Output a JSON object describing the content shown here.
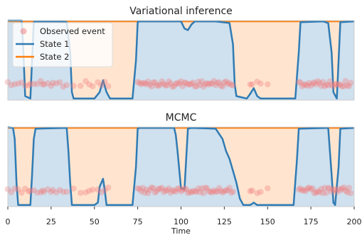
{
  "chart_data": {
    "type": "area",
    "xlabel": "Time",
    "xlim": [
      0,
      200
    ],
    "xticks": [
      "0",
      "25",
      "50",
      "75",
      "100",
      "125",
      "150",
      "175",
      "200"
    ],
    "legend": {
      "placement": "top-left",
      "entries": [
        "Observed event",
        "State 1",
        "State 2"
      ]
    },
    "colors": {
      "state1_line": "#2f7bb4",
      "state1_fill": "#cfe0ee",
      "state2_line": "#ff7f0e",
      "state2_fill": "#ffe5cf",
      "observed": "#f07a7a"
    },
    "panels": [
      {
        "title": "Variational inference",
        "state1_probability": [
          [
            0,
            1.0
          ],
          [
            8,
            1.0
          ],
          [
            9,
            0.6
          ],
          [
            10,
            0.05
          ],
          [
            13,
            0.02
          ],
          [
            14,
            0.5
          ],
          [
            15,
            0.98
          ],
          [
            16,
            0.99
          ],
          [
            30,
            0.99
          ],
          [
            34,
            0.98
          ],
          [
            36,
            0.6
          ],
          [
            37,
            0.1
          ],
          [
            38,
            0.02
          ],
          [
            50,
            0.02
          ],
          [
            53,
            0.1
          ],
          [
            55,
            0.25
          ],
          [
            57,
            0.1
          ],
          [
            59,
            0.02
          ],
          [
            72,
            0.02
          ],
          [
            74,
            0.5
          ],
          [
            75,
            0.98
          ],
          [
            76,
            0.99
          ],
          [
            100,
            0.99
          ],
          [
            102,
            0.9
          ],
          [
            104,
            0.88
          ],
          [
            106,
            0.95
          ],
          [
            108,
            0.99
          ],
          [
            120,
            0.99
          ],
          [
            128,
            0.97
          ],
          [
            130,
            0.7
          ],
          [
            131,
            0.2
          ],
          [
            132,
            0.05
          ],
          [
            138,
            0.02
          ],
          [
            140,
            0.08
          ],
          [
            142,
            0.15
          ],
          [
            144,
            0.05
          ],
          [
            146,
            0.02
          ],
          [
            166,
            0.02
          ],
          [
            168,
            0.6
          ],
          [
            169,
            0.98
          ],
          [
            182,
            0.99
          ],
          [
            185,
            0.97
          ],
          [
            187,
            0.6
          ],
          [
            188,
            0.1
          ],
          [
            190,
            0.02
          ],
          [
            191,
            0.5
          ],
          [
            192,
            0.98
          ],
          [
            200,
            0.99
          ]
        ]
      },
      {
        "title": "MCMC",
        "state1_probability": [
          [
            0,
            1.0
          ],
          [
            3,
            0.99
          ],
          [
            4,
            0.85
          ],
          [
            5,
            0.3
          ],
          [
            6,
            0.02
          ],
          [
            13,
            0.02
          ],
          [
            14,
            0.4
          ],
          [
            15,
            0.85
          ],
          [
            16,
            0.98
          ],
          [
            34,
            0.99
          ],
          [
            35,
            0.7
          ],
          [
            36,
            0.3
          ],
          [
            37,
            0.02
          ],
          [
            50,
            0.02
          ],
          [
            52,
            0.05
          ],
          [
            53,
            0.25
          ],
          [
            55,
            0.35
          ],
          [
            56,
            0.2
          ],
          [
            57,
            0.02
          ],
          [
            72,
            0.02
          ],
          [
            74,
            0.5
          ],
          [
            75,
            0.98
          ],
          [
            76,
            0.99
          ],
          [
            96,
            0.99
          ],
          [
            97,
            0.9
          ],
          [
            98,
            0.7
          ],
          [
            100,
            0.23
          ],
          [
            102,
            0.22
          ],
          [
            103,
            0.6
          ],
          [
            104,
            0.98
          ],
          [
            106,
            0.99
          ],
          [
            120,
            0.98
          ],
          [
            124,
            0.85
          ],
          [
            126,
            0.7
          ],
          [
            128,
            0.6
          ],
          [
            130,
            0.45
          ],
          [
            132,
            0.3
          ],
          [
            134,
            0.1
          ],
          [
            136,
            0.02
          ],
          [
            140,
            0.02
          ],
          [
            142,
            0.05
          ],
          [
            144,
            0.02
          ],
          [
            165,
            0.02
          ],
          [
            167,
            0.6
          ],
          [
            168,
            0.98
          ],
          [
            185,
            0.99
          ],
          [
            187,
            0.4
          ],
          [
            188,
            0.05
          ],
          [
            189,
            0.02
          ],
          [
            191,
            0.5
          ],
          [
            192,
            0.98
          ],
          [
            200,
            0.99
          ]
        ]
      }
    ],
    "observed_events": [
      0,
      2,
      4,
      6,
      8,
      10,
      12,
      13,
      15,
      17,
      19,
      20,
      21,
      23,
      25,
      26,
      28,
      30,
      32,
      34,
      38,
      42,
      45,
      47,
      49,
      52,
      54,
      56,
      58,
      75,
      76,
      77,
      78,
      79,
      80,
      81,
      82,
      83,
      84,
      85,
      86,
      87,
      88,
      89,
      90,
      91,
      92,
      93,
      94,
      95,
      96,
      97,
      98,
      99,
      100,
      101,
      102,
      103,
      104,
      105,
      106,
      107,
      108,
      109,
      110,
      111,
      112,
      113,
      114,
      115,
      116,
      117,
      118,
      119,
      120,
      121,
      122,
      123,
      124,
      125,
      126,
      127,
      128,
      129,
      130,
      140,
      141,
      144,
      146,
      150,
      168,
      169,
      170,
      171,
      172,
      173,
      174,
      175,
      176,
      177,
      178,
      179,
      180,
      181,
      182,
      183,
      184,
      185,
      186,
      187,
      188,
      189,
      190,
      191,
      192,
      193,
      194,
      195,
      196,
      197,
      198
    ]
  }
}
